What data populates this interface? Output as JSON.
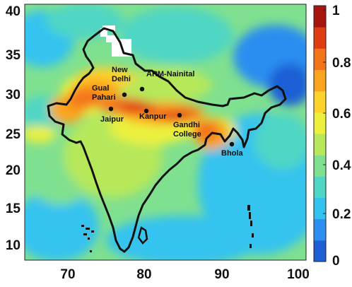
{
  "x_axis": {
    "ticks": [
      "70",
      "80",
      "90",
      "100"
    ]
  },
  "y_axis": {
    "ticks": [
      "40",
      "35",
      "30",
      "25",
      "20",
      "15",
      "10"
    ]
  },
  "colorbar": {
    "ticks": [
      "1",
      "0.8",
      "0.6",
      "0.4",
      "0.2",
      "0"
    ],
    "colors": [
      "#1f5fd6",
      "#2b8ef0",
      "#34c3ef",
      "#4fd6c4",
      "#7fe08f",
      "#b6e85a",
      "#ecf03c",
      "#fdd22a",
      "#fba41d",
      "#f4741a",
      "#e03c12",
      "#a8140e"
    ]
  },
  "map": {
    "background_color": "#7fe08f",
    "missing_data_color": "#ffffff",
    "boundary_color": "#111111"
  },
  "sites": [
    {
      "name_lines": [
        "New",
        "Delhi"
      ]
    },
    {
      "name_lines": [
        "ARM-Nainital"
      ]
    },
    {
      "name_lines": [
        "Gual",
        "Pahari"
      ]
    },
    {
      "name_lines": [
        "Jaipur"
      ]
    },
    {
      "name_lines": [
        "Kanpur"
      ]
    },
    {
      "name_lines": [
        "Gandhi",
        "College"
      ]
    },
    {
      "name_lines": [
        "Bhola"
      ]
    }
  ]
}
